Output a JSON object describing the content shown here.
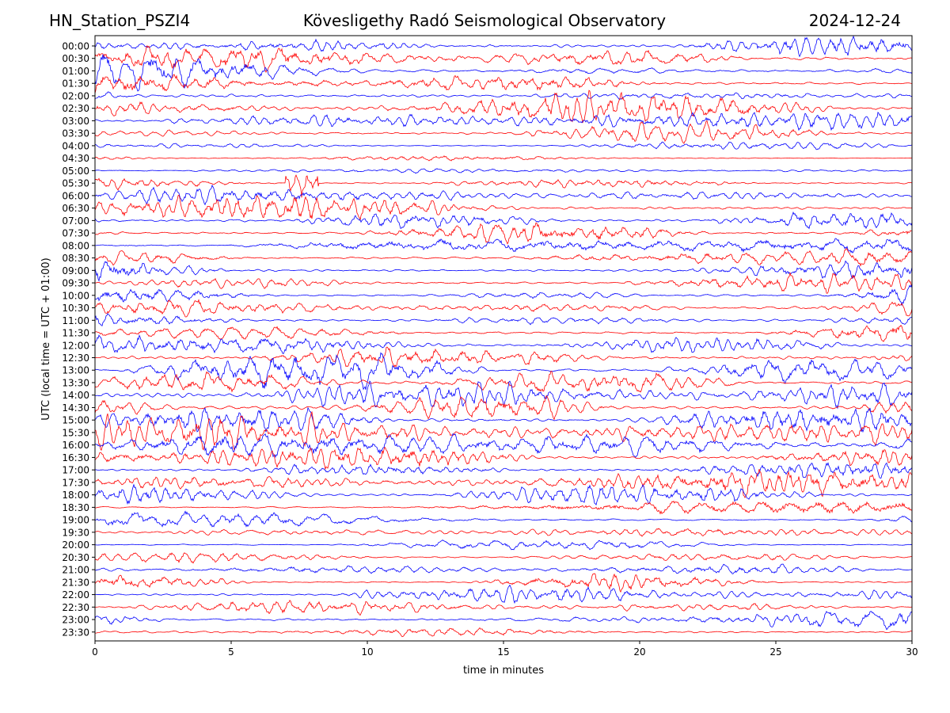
{
  "header": {
    "station": "HN_Station_PSZI4",
    "observatory": "Kövesligethy Radó Seismological Observatory",
    "date": "2024-12-24"
  },
  "chart_data": {
    "type": "line",
    "title": "Kövesligethy Radó Seismological Observatory",
    "xlabel": "time in minutes",
    "ylabel": "UTC (local time = UTC + 01:00)",
    "xlim": [
      0,
      30
    ],
    "x_ticks": [
      0,
      5,
      10,
      15,
      20,
      25,
      30
    ],
    "x_tick_labels": [
      "0",
      "5",
      "10",
      "15",
      "20",
      "25",
      "30"
    ],
    "y_tick_labels": [
      "00:00",
      "00:30",
      "01:00",
      "01:30",
      "02:00",
      "02:30",
      "03:00",
      "03:30",
      "04:00",
      "04:30",
      "05:00",
      "05:30",
      "06:00",
      "06:30",
      "07:00",
      "07:30",
      "08:00",
      "08:30",
      "09:00",
      "09:30",
      "10:00",
      "10:30",
      "11:00",
      "11:30",
      "12:00",
      "12:30",
      "13:00",
      "13:30",
      "14:00",
      "14:30",
      "15:00",
      "15:30",
      "16:00",
      "16:30",
      "17:00",
      "17:30",
      "18:00",
      "18:30",
      "19:00",
      "19:30",
      "20:00",
      "20:30",
      "21:00",
      "21:30",
      "22:00",
      "22:30",
      "23:00",
      "23:30"
    ],
    "trace_colors": [
      "#0000ff",
      "#ff0000"
    ],
    "trace_amplitude_level": [
      0.9,
      0.9,
      0.85,
      0.85,
      0.8,
      0.8,
      0.75,
      0.55,
      0.25,
      0.25,
      0.3,
      0.45,
      0.7,
      0.7,
      0.7,
      0.7,
      0.65,
      0.65,
      0.65,
      0.65,
      0.7,
      0.7,
      0.7,
      0.7,
      0.75,
      0.75,
      0.8,
      0.85,
      1.0,
      1.0,
      1.0,
      1.0,
      0.95,
      0.9,
      0.7,
      0.65,
      0.6,
      0.55,
      0.55,
      0.4,
      0.35,
      0.4,
      0.45,
      0.45,
      0.5,
      0.5,
      0.55,
      0.6
    ],
    "event": {
      "row": 11,
      "minute_start": 7.0,
      "minute_end": 8.2
    }
  }
}
